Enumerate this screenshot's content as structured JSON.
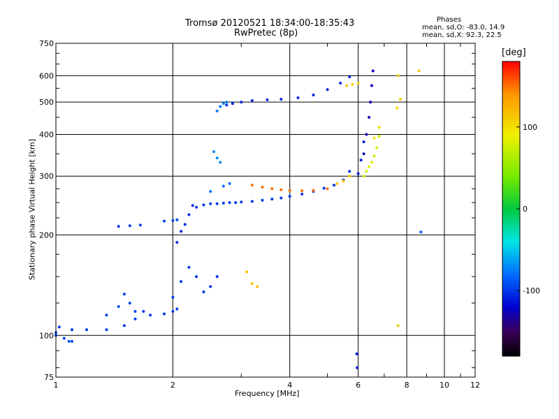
{
  "chart_data": {
    "type": "scatter",
    "title": "Tromsø 20120521 18:34:00-18:35:43",
    "subtitle": "RwPretec (8p)",
    "xlabel": "Frequency [MHz]",
    "ylabel": "Stationary phase Virtual Height [km]",
    "x_scale": "log",
    "y_scale": "log",
    "xlim": [
      1,
      12
    ],
    "ylim": [
      75,
      750
    ],
    "x_ticks": [
      1,
      2,
      4,
      6,
      8,
      10,
      12
    ],
    "y_ticks": [
      75,
      100,
      200,
      300,
      400,
      500,
      600,
      750
    ],
    "grid": true,
    "phases_box": {
      "heading": "Phases",
      "line1": "mean, sd,O: -83.0, 14.9",
      "line2": "mean, sd,X:  92.3, 22.5"
    },
    "colorbar": {
      "label": "[deg]",
      "range": [
        -180,
        180
      ],
      "ticks": [
        100,
        0,
        -100
      ]
    },
    "traces": [
      {
        "x": [
          1.0,
          1.05,
          1.1
        ],
        "y": [
          100,
          98,
          96
        ],
        "phase": -95
      },
      {
        "x": [
          1.02,
          1.1,
          1.2,
          1.35,
          1.5,
          1.6,
          1.68,
          1.75,
          1.9,
          2.0,
          2.05
        ],
        "y": [
          106,
          104,
          104,
          104,
          107,
          112,
          118,
          115,
          116,
          118,
          120
        ],
        "phase": -100
      },
      {
        "x": [
          1.35,
          1.45,
          1.5,
          1.55,
          1.6
        ],
        "y": [
          115,
          122,
          133,
          125,
          118
        ],
        "phase": -95
      },
      {
        "x": [
          1.45,
          1.55,
          1.65
        ],
        "y": [
          212,
          213,
          214
        ],
        "phase": -100
      },
      {
        "x": [
          1.9,
          2.0,
          2.05
        ],
        "y": [
          220,
          221,
          222
        ],
        "phase": -95
      },
      {
        "x": [
          2.0,
          2.1,
          2.2,
          2.3,
          2.4,
          2.5,
          2.6
        ],
        "y": [
          130,
          145,
          160,
          150,
          135,
          140,
          150
        ],
        "phase": -100
      },
      {
        "x": [
          2.05,
          2.1,
          2.15,
          2.2,
          2.25
        ],
        "y": [
          190,
          205,
          215,
          230,
          245
        ],
        "phase": -105
      },
      {
        "x": [
          2.3,
          2.4,
          2.5,
          2.6,
          2.7,
          2.8,
          2.9,
          3.0,
          3.2,
          3.4,
          3.6,
          3.8,
          4.0,
          4.3,
          4.6,
          4.9,
          5.2,
          5.5,
          5.7
        ],
        "y": [
          242,
          246,
          248,
          248,
          249,
          250,
          250,
          251,
          252,
          254,
          256,
          258,
          261,
          265,
          270,
          276,
          282,
          292,
          310
        ],
        "phase": -100
      },
      {
        "x": [
          2.5,
          2.7,
          2.8
        ],
        "y": [
          270,
          280,
          285
        ],
        "phase": -80
      },
      {
        "x": [
          2.55,
          2.6,
          2.65
        ],
        "y": [
          355,
          340,
          330
        ],
        "phase": -70
      },
      {
        "x": [
          2.6,
          2.65,
          2.7,
          2.75
        ],
        "y": [
          470,
          485,
          495,
          500
        ],
        "phase": -75
      },
      {
        "x": [
          2.75,
          2.85,
          3.0,
          3.2,
          3.5,
          3.8,
          4.2,
          4.6,
          5.0,
          5.4,
          5.7
        ],
        "y": [
          490,
          495,
          500,
          505,
          508,
          510,
          515,
          525,
          545,
          570,
          595
        ],
        "phase": -105
      },
      {
        "x": [
          3.1,
          3.2,
          3.3
        ],
        "y": [
          155,
          143,
          140
        ],
        "phase": 115
      },
      {
        "x": [
          3.2,
          3.4,
          3.6,
          3.8,
          4.0,
          4.3,
          4.6,
          5.0
        ],
        "y": [
          282,
          278,
          275,
          273,
          272,
          271,
          272,
          275
        ],
        "phase": 150
      },
      {
        "x": [
          5.3,
          5.5,
          5.7
        ],
        "y": [
          285,
          290,
          300
        ],
        "phase": 115
      },
      {
        "x": [
          5.6,
          5.8,
          6.0
        ],
        "y": [
          560,
          565,
          570
        ],
        "phase": 110
      },
      {
        "x": [
          6.0,
          6.1,
          6.2
        ],
        "y": [
          305,
          335,
          380
        ],
        "phase": -110
      },
      {
        "x": [
          6.2,
          6.3,
          6.4,
          6.45,
          6.5,
          6.55
        ],
        "y": [
          350,
          400,
          450,
          500,
          560,
          620
        ],
        "phase": -125
      },
      {
        "x": [
          6.2,
          6.3,
          6.4,
          6.5,
          6.6,
          6.7,
          6.8
        ],
        "y": [
          300,
          310,
          320,
          330,
          345,
          365,
          395
        ],
        "phase": 80
      },
      {
        "x": [
          6.6,
          6.8
        ],
        "y": [
          390,
          420
        ],
        "phase": 95
      },
      {
        "x": [
          5.95,
          5.96
        ],
        "y": [
          88,
          80
        ],
        "phase": -110
      },
      {
        "x": [
          7.6,
          8.6
        ],
        "y": [
          600,
          620
        ],
        "phase": 110
      },
      {
        "x": [
          7.55,
          7.7
        ],
        "y": [
          480,
          510
        ],
        "phase": 105
      },
      {
        "x": [
          7.6
        ],
        "y": [
          107
        ],
        "phase": 110
      },
      {
        "x": [
          8.7
        ],
        "y": [
          204
        ],
        "phase": -85
      },
      {
        "x": [
          1.0,
          1.08
        ],
        "y": [
          102,
          96
        ],
        "phase": -90
      }
    ]
  }
}
